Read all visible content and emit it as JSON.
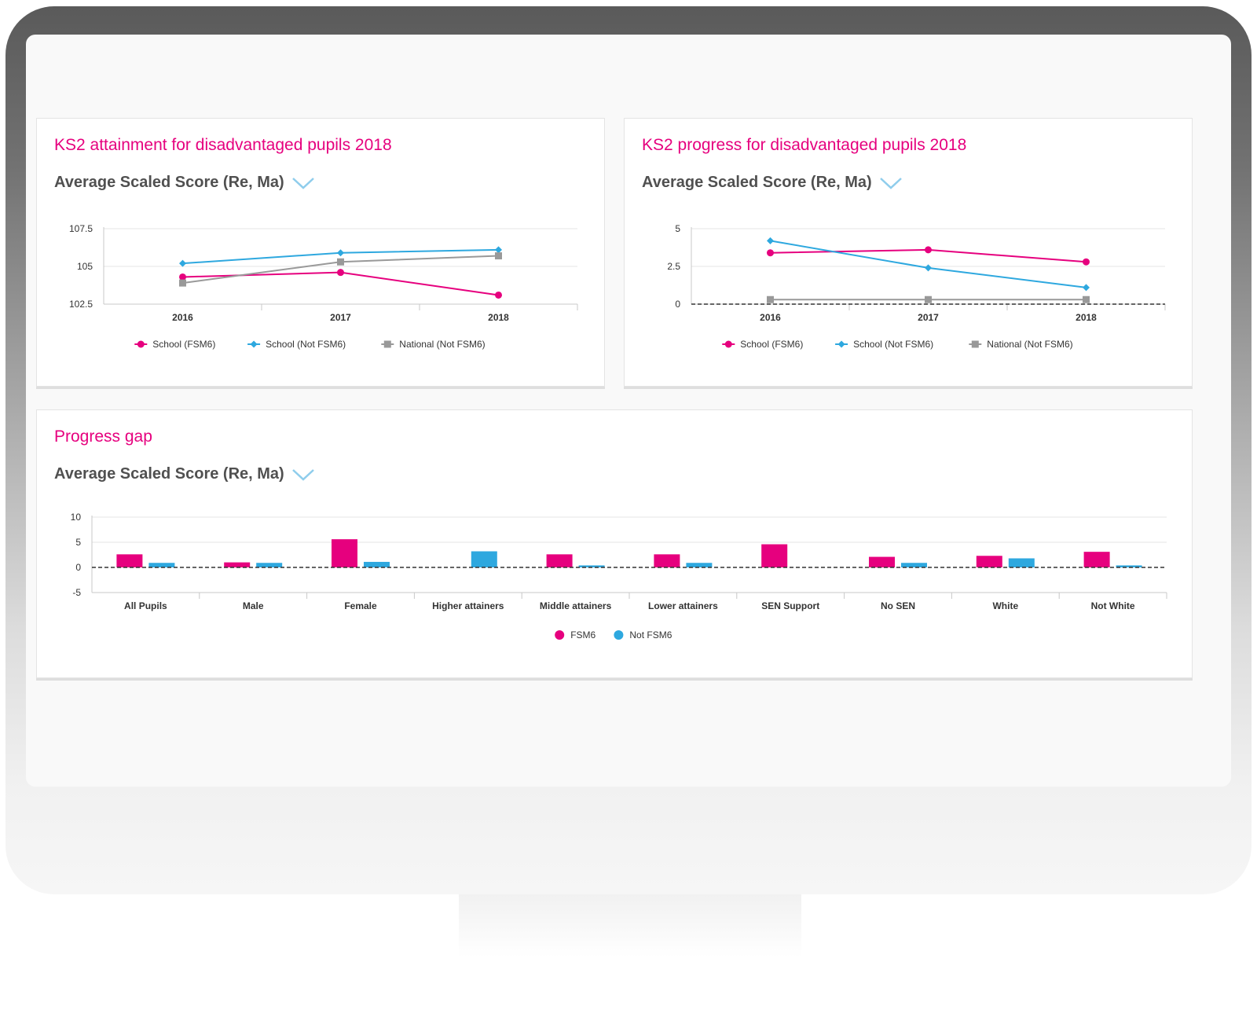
{
  "dropdown_icon": "chevron-down-icon",
  "colors": {
    "fsm6": "#e6007e",
    "not_fsm6": "#2ea8df",
    "national": "#999999",
    "title": "#e6007e",
    "axis": "#c8c8c8",
    "grid": "#e6e6e6"
  },
  "cards": {
    "attainment": {
      "title": "KS2 attainment for disadvantaged pupils 2018",
      "measure": "Average Scaled Score (Re, Ma)"
    },
    "progress": {
      "title": "KS2 progress for disadvantaged pupils 2018",
      "measure": "Average Scaled Score (Re, Ma)"
    },
    "gap": {
      "title": "Progress gap",
      "measure": "Average Scaled Score (Re, Ma)"
    }
  },
  "chart_data": [
    {
      "id": "attainment",
      "type": "line",
      "categories": [
        "2016",
        "2017",
        "2018"
      ],
      "ylim": [
        102.5,
        107.5
      ],
      "yticks": [
        102.5,
        105,
        107.5
      ],
      "ytick_labels": [
        "102.5",
        "105",
        "107.5"
      ],
      "grid": true,
      "legend": "bottom",
      "series": [
        {
          "name": "School (FSM6)",
          "marker": "circle",
          "color": "#e6007e",
          "values": [
            104.3,
            104.6,
            103.1
          ]
        },
        {
          "name": "School (Not FSM6)",
          "marker": "diamond",
          "color": "#2ea8df",
          "values": [
            105.2,
            105.9,
            106.1
          ]
        },
        {
          "name": "National (Not FSM6)",
          "marker": "square",
          "color": "#999999",
          "values": [
            103.9,
            105.3,
            105.7
          ]
        }
      ]
    },
    {
      "id": "progress",
      "type": "line",
      "categories": [
        "2016",
        "2017",
        "2018"
      ],
      "ylim": [
        0,
        5
      ],
      "yticks": [
        0,
        2.5,
        5
      ],
      "ytick_labels": [
        "0",
        "2.5",
        "5"
      ],
      "grid": true,
      "zero_line": "dashed",
      "legend": "bottom",
      "series": [
        {
          "name": "School (FSM6)",
          "marker": "circle",
          "color": "#e6007e",
          "values": [
            3.4,
            3.6,
            2.8
          ]
        },
        {
          "name": "School (Not FSM6)",
          "marker": "diamond",
          "color": "#2ea8df",
          "values": [
            4.2,
            2.4,
            1.1
          ]
        },
        {
          "name": "National (Not FSM6)",
          "marker": "square",
          "color": "#999999",
          "values": [
            0.3,
            0.3,
            0.3
          ]
        }
      ]
    },
    {
      "id": "gap",
      "type": "bar",
      "categories": [
        "All Pupils",
        "Male",
        "Female",
        "Higher attainers",
        "Middle attainers",
        "Lower attainers",
        "SEN Support",
        "No SEN",
        "White",
        "Not White"
      ],
      "ylim": [
        -5,
        10
      ],
      "yticks": [
        -5,
        0,
        5,
        10
      ],
      "ytick_labels": [
        "-5",
        "0",
        "5",
        "10"
      ],
      "grid": true,
      "zero_line": "dashed",
      "legend": "bottom",
      "series": [
        {
          "name": "FSM6",
          "color": "#e6007e",
          "values": [
            2.6,
            1.0,
            5.6,
            null,
            2.6,
            2.6,
            4.6,
            2.1,
            2.3,
            3.1
          ]
        },
        {
          "name": "Not FSM6",
          "color": "#2ea8df",
          "values": [
            0.9,
            0.9,
            1.1,
            3.2,
            0.4,
            0.9,
            null,
            0.9,
            1.8,
            0.4
          ]
        }
      ]
    }
  ]
}
